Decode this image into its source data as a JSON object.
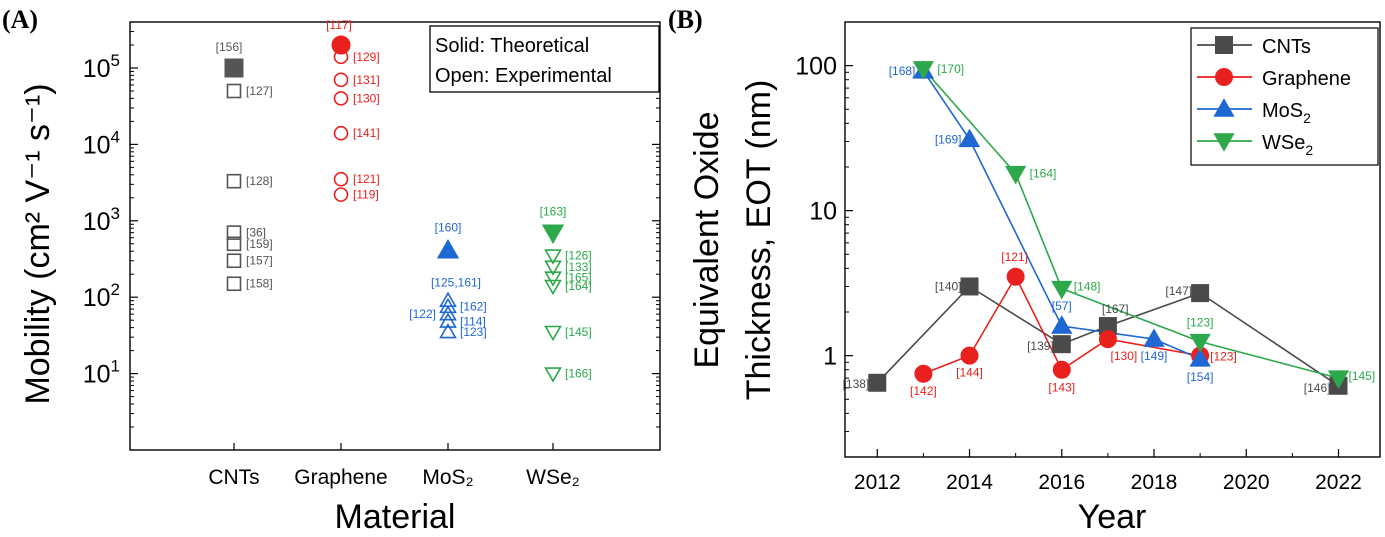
{
  "chart_data": [
    {
      "panel": "(A)",
      "type": "scatter",
      "xlabel": "Material",
      "ylabel": "Mobility (cm² V⁻¹ s⁻¹)",
      "yscale": "log",
      "ylim": [
        1,
        400000
      ],
      "categories": [
        "CNTs",
        "Graphene",
        "MoS₂",
        "WSe₂"
      ],
      "category_labels": [
        "CNTs",
        "Graphene",
        "MoS₂",
        "WSe₂"
      ],
      "y_ticks": [
        {
          "value": 10,
          "label": "10",
          "exp": "1"
        },
        {
          "value": 100,
          "label": "10",
          "exp": "2"
        },
        {
          "value": 1000,
          "label": "10",
          "exp": "3"
        },
        {
          "value": 10000,
          "label": "10",
          "exp": "4"
        },
        {
          "value": 100000,
          "label": "10",
          "exp": "5"
        }
      ],
      "note": [
        "Solid: Theoretical",
        "Open: Experimental"
      ],
      "series": [
        {
          "category": "CNTs",
          "color": "#555555",
          "marker": "square",
          "points": [
            {
              "value": 100000,
              "label": "[156]",
              "filled": true
            },
            {
              "value": 50000,
              "label": "[127]",
              "filled": false
            },
            {
              "value": 3300,
              "label": "[128]",
              "filled": false
            },
            {
              "value": 700,
              "label": "[36]",
              "filled": false
            },
            {
              "value": 500,
              "label": "[159]",
              "filled": false
            },
            {
              "value": 300,
              "label": "[157]",
              "filled": false
            },
            {
              "value": 150,
              "label": "[158]",
              "filled": false
            }
          ]
        },
        {
          "category": "Graphene",
          "color": "#e8211e",
          "marker": "circle",
          "points": [
            {
              "value": 200000,
              "label": "[117]",
              "filled": true
            },
            {
              "value": 140000,
              "label": "[129]",
              "filled": false
            },
            {
              "value": 70000,
              "label": "[131]",
              "filled": false
            },
            {
              "value": 40000,
              "label": "[130]",
              "filled": false
            },
            {
              "value": 14000,
              "label": "[141]",
              "filled": false
            },
            {
              "value": 3500,
              "label": "[121]",
              "filled": false
            },
            {
              "value": 2200,
              "label": "[119]",
              "filled": false
            }
          ]
        },
        {
          "category": "MoS₂",
          "color": "#1f67d2",
          "marker": "triangle-up",
          "points": [
            {
              "value": 410,
              "label": "[160]",
              "filled": true
            },
            {
              "value": 90,
              "label": "[125,161]",
              "filled": false
            },
            {
              "value": 75,
              "label": "[162]",
              "filled": false
            },
            {
              "value": 60,
              "label": "[122]",
              "filled": false
            },
            {
              "value": 48,
              "label": "[114]",
              "filled": false
            },
            {
              "value": 35,
              "label": "[123]",
              "filled": false
            }
          ]
        },
        {
          "category": "WSe₂",
          "color": "#2da84a",
          "marker": "triangle-down",
          "points": [
            {
              "value": 700,
              "label": "[163]",
              "filled": true
            },
            {
              "value": 350,
              "label": "[126]",
              "filled": false
            },
            {
              "value": 250,
              "label": "[133]",
              "filled": false
            },
            {
              "value": 180,
              "label": "[165]",
              "filled": false
            },
            {
              "value": 140,
              "label": "[164]",
              "filled": false
            },
            {
              "value": 35,
              "label": "[145]",
              "filled": false
            },
            {
              "value": 10,
              "label": "[166]",
              "filled": false
            }
          ]
        }
      ]
    },
    {
      "panel": "(B)",
      "type": "line",
      "xlabel": "Year",
      "ylabel": [
        "Equivalent Oxide",
        "Thickness, EOT (nm)"
      ],
      "yscale": "log",
      "xlim": [
        2011.3,
        2022.9
      ],
      "ylim": [
        0.2,
        200
      ],
      "x_ticks": [
        2012,
        2014,
        2016,
        2018,
        2020,
        2022
      ],
      "y_ticks": [
        {
          "value": 1,
          "label": "1"
        },
        {
          "value": 10,
          "label": "10"
        },
        {
          "value": 100,
          "label": "100"
        }
      ],
      "series": [
        {
          "name": "CNTs",
          "color": "#4a4a4a",
          "marker": "square",
          "points": [
            {
              "x": 2012,
              "y": 0.65,
              "label": "[138]"
            },
            {
              "x": 2014,
              "y": 3.0,
              "label": "[140]"
            },
            {
              "x": 2016,
              "y": 1.2,
              "label": "[139]"
            },
            {
              "x": 2017,
              "y": 1.6,
              "label": "[167]"
            },
            {
              "x": 2019,
              "y": 2.7,
              "label": "[147]"
            },
            {
              "x": 2022,
              "y": 0.62,
              "label": "[146]"
            }
          ]
        },
        {
          "name": "Graphene",
          "color": "#e8211e",
          "marker": "circle",
          "points": [
            {
              "x": 2013,
              "y": 0.75,
              "label": "[142]"
            },
            {
              "x": 2014,
              "y": 1.0,
              "label": "[144]"
            },
            {
              "x": 2015,
              "y": 3.5,
              "label": "[121]"
            },
            {
              "x": 2016,
              "y": 0.8,
              "label": "[143]"
            },
            {
              "x": 2017,
              "y": 1.3,
              "label": "[130]"
            },
            {
              "x": 2019,
              "y": 1.0,
              "label": "[123]"
            }
          ]
        },
        {
          "name": "MoS₂",
          "legend_base": "MoS",
          "legend_sub": "2",
          "color": "#1f67d2",
          "marker": "triangle-up",
          "points": [
            {
              "x": 2013,
              "y": 92,
              "label": "[168]"
            },
            {
              "x": 2014,
              "y": 31,
              "label": "[169]"
            },
            {
              "x": 2016,
              "y": 1.6,
              "label": "[57]"
            },
            {
              "x": 2018,
              "y": 1.3,
              "label": "[149]"
            },
            {
              "x": 2019,
              "y": 0.95,
              "label": "[154]"
            }
          ]
        },
        {
          "name": "WSe₂",
          "legend_base": "WSe",
          "legend_sub": "2",
          "color": "#2da84a",
          "marker": "triangle-down",
          "points": [
            {
              "x": 2013,
              "y": 95,
              "label": "[170]"
            },
            {
              "x": 2015,
              "y": 18,
              "label": "[164]"
            },
            {
              "x": 2016,
              "y": 2.9,
              "label": "[148]"
            },
            {
              "x": 2019,
              "y": 1.25,
              "label": "[123]"
            },
            {
              "x": 2022,
              "y": 0.7,
              "label": "[145]"
            }
          ]
        }
      ]
    }
  ]
}
